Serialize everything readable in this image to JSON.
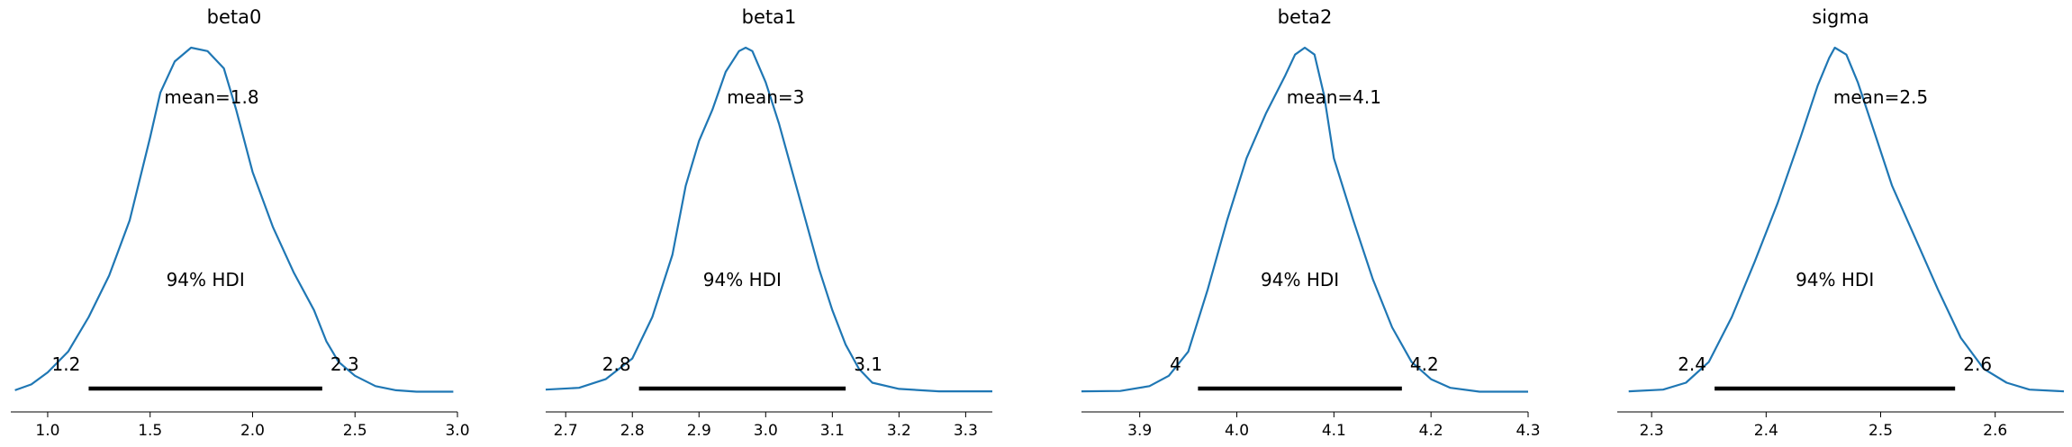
{
  "chart_data": [
    {
      "type": "line",
      "title": "beta0",
      "mean_label": "mean=1.8",
      "hdi_label": "94% HDI",
      "hdi": [
        1.2,
        2.34
      ],
      "hdi_low_label": "1.2",
      "hdi_high_label": "2.3",
      "xlim": [
        0.82,
        3.0
      ],
      "xticks": [
        1.0,
        1.5,
        2.0,
        2.5,
        3.0
      ],
      "xtick_labels": [
        "1.0",
        "1.5",
        "2.0",
        "2.5",
        "3.0"
      ],
      "density": {
        "x": [
          0.84,
          0.92,
          1.0,
          1.1,
          1.2,
          1.3,
          1.4,
          1.5,
          1.55,
          1.62,
          1.7,
          1.78,
          1.86,
          1.92,
          2.0,
          2.1,
          2.2,
          2.3,
          2.36,
          2.42,
          2.5,
          2.6,
          2.7,
          2.8,
          2.98
        ],
        "y": [
          0.008,
          0.025,
          0.06,
          0.12,
          0.22,
          0.34,
          0.5,
          0.74,
          0.87,
          0.96,
          1.0,
          0.99,
          0.94,
          0.82,
          0.64,
          0.48,
          0.35,
          0.24,
          0.15,
          0.09,
          0.05,
          0.02,
          0.008,
          0.004,
          0.004
        ]
      }
    },
    {
      "type": "line",
      "title": "beta1",
      "mean_label": "mean=3",
      "hdi_label": "94% HDI",
      "hdi": [
        2.81,
        3.12
      ],
      "hdi_low_label": "2.8",
      "hdi_high_label": "3.1",
      "xlim": [
        2.67,
        3.34
      ],
      "xticks": [
        2.7,
        2.8,
        2.9,
        3.0,
        3.1,
        3.2,
        3.3
      ],
      "xtick_labels": [
        "2.7",
        "2.8",
        "2.9",
        "3.0",
        "3.1",
        "3.2",
        "3.3"
      ],
      "density": {
        "x": [
          2.67,
          2.72,
          2.76,
          2.8,
          2.83,
          2.86,
          2.88,
          2.9,
          2.92,
          2.94,
          2.96,
          2.97,
          2.98,
          3.0,
          3.02,
          3.04,
          3.06,
          3.08,
          3.1,
          3.12,
          3.14,
          3.16,
          3.2,
          3.26,
          3.34
        ],
        "y": [
          0.01,
          0.015,
          0.04,
          0.1,
          0.22,
          0.4,
          0.6,
          0.73,
          0.82,
          0.93,
          0.99,
          1.0,
          0.99,
          0.9,
          0.78,
          0.64,
          0.5,
          0.36,
          0.24,
          0.14,
          0.07,
          0.03,
          0.012,
          0.005,
          0.005
        ]
      }
    },
    {
      "type": "line",
      "title": "beta2",
      "mean_label": "mean=4.1",
      "hdi_label": "94% HDI",
      "hdi": [
        3.96,
        4.17
      ],
      "hdi_low_label": "4",
      "hdi_high_label": "4.2",
      "xlim": [
        3.84,
        4.3
      ],
      "xticks": [
        3.9,
        4.0,
        4.1,
        4.2,
        4.3
      ],
      "xtick_labels": [
        "3.9",
        "4.0",
        "4.1",
        "4.2",
        "4.3"
      ],
      "density": {
        "x": [
          3.84,
          3.88,
          3.91,
          3.93,
          3.95,
          3.97,
          3.99,
          4.01,
          4.03,
          4.05,
          4.06,
          4.07,
          4.08,
          4.09,
          4.1,
          4.12,
          4.14,
          4.16,
          4.18,
          4.2,
          4.22,
          4.25,
          4.3
        ],
        "y": [
          0.005,
          0.006,
          0.02,
          0.05,
          0.12,
          0.3,
          0.5,
          0.68,
          0.81,
          0.92,
          0.98,
          1.0,
          0.98,
          0.86,
          0.68,
          0.5,
          0.33,
          0.19,
          0.09,
          0.04,
          0.015,
          0.004,
          0.004
        ]
      }
    },
    {
      "type": "line",
      "title": "sigma",
      "mean_label": "mean=2.5",
      "hdi_label": "94% HDI",
      "hdi": [
        2.355,
        2.565
      ],
      "hdi_low_label": "2.4",
      "hdi_high_label": "2.6",
      "xlim": [
        2.27,
        2.66
      ],
      "xticks": [
        2.3,
        2.4,
        2.5,
        2.6
      ],
      "xtick_labels": [
        "2.3",
        "2.4",
        "2.5",
        "2.6"
      ],
      "density": {
        "x": [
          2.28,
          2.31,
          2.33,
          2.35,
          2.37,
          2.39,
          2.41,
          2.43,
          2.445,
          2.455,
          2.46,
          2.47,
          2.48,
          2.495,
          2.51,
          2.53,
          2.55,
          2.57,
          2.59,
          2.61,
          2.63,
          2.66
        ],
        "y": [
          0.005,
          0.01,
          0.03,
          0.09,
          0.22,
          0.38,
          0.55,
          0.74,
          0.89,
          0.97,
          1.0,
          0.98,
          0.9,
          0.75,
          0.6,
          0.45,
          0.3,
          0.16,
          0.07,
          0.03,
          0.01,
          0.005
        ]
      }
    }
  ]
}
